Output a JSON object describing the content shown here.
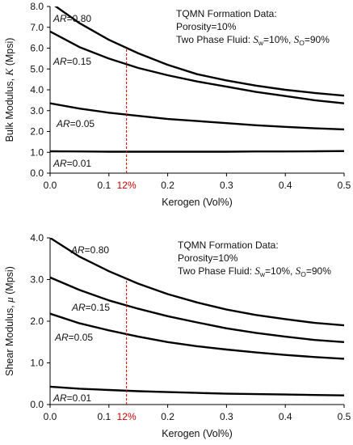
{
  "colors": {
    "line": "#000000",
    "marker": "#cc0000",
    "axis": "#000000"
  },
  "chart_data": [
    {
      "type": "line",
      "xlabel": "Kerogen (Vol%)",
      "ylabel": "Bulk Modulus, K (Mpsi)",
      "ylabel_prefix": "Bulk Modulus, ",
      "ylabel_symbol": "K",
      "ylabel_suffix": " (Mpsi)",
      "xlim": [
        0,
        0.5
      ],
      "ylim": [
        0,
        8
      ],
      "xticks": [
        0,
        0.1,
        0.2,
        0.3,
        0.4,
        0.5
      ],
      "xtick_labels": [
        "0.0",
        "0.1",
        "0.2",
        "0.3",
        "0.4",
        "0.5"
      ],
      "yticks": [
        0,
        1,
        2,
        3,
        4,
        5,
        6,
        7,
        8
      ],
      "ytick_labels": [
        "0.0",
        "1.0",
        "2.0",
        "3.0",
        "4.0",
        "5.0",
        "6.0",
        "7.0",
        "8.0"
      ],
      "marker": {
        "x": 0.13,
        "label": "12%"
      },
      "annotation": {
        "line1": "TQMN Formation Data:",
        "line2": "Porosity=10%",
        "line3_prefix": "Two Phase Fluid: ",
        "sw_symbol": "S",
        "sw_sub": "w",
        "sw_value": "=10%, ",
        "so_symbol": "S",
        "so_sub": "O",
        "so_value": "=90%"
      },
      "x": [
        0,
        0.05,
        0.1,
        0.15,
        0.2,
        0.25,
        0.3,
        0.35,
        0.4,
        0.45,
        0.5
      ],
      "series": [
        {
          "label_prefix": "AR",
          "label_value": "=0.80",
          "values": [
            8.2,
            7.2,
            6.4,
            5.75,
            5.2,
            4.75,
            4.45,
            4.2,
            4.0,
            3.85,
            3.72
          ]
        },
        {
          "label_prefix": "AR",
          "label_value": "=0.15",
          "values": [
            6.8,
            6.05,
            5.5,
            5.05,
            4.7,
            4.4,
            4.15,
            3.9,
            3.7,
            3.5,
            3.35
          ]
        },
        {
          "label_prefix": "AR",
          "label_value": "=0.05",
          "values": [
            3.35,
            3.1,
            2.9,
            2.75,
            2.6,
            2.5,
            2.4,
            2.3,
            2.22,
            2.15,
            2.1
          ]
        },
        {
          "label_prefix": "AR",
          "label_value": "=0.01",
          "values": [
            1.05,
            1.04,
            1.03,
            1.03,
            1.03,
            1.03,
            1.03,
            1.04,
            1.04,
            1.05,
            1.06
          ]
        }
      ]
    },
    {
      "type": "line",
      "xlabel": "Kerogen (Vol%)",
      "ylabel": "Shear Modulus, μ (Mpsi)",
      "ylabel_prefix": "Shear Modulus, ",
      "ylabel_symbol": "μ",
      "ylabel_suffix": " (Mpsi)",
      "xlim": [
        0,
        0.5
      ],
      "ylim": [
        0,
        4
      ],
      "xticks": [
        0,
        0.1,
        0.2,
        0.3,
        0.4,
        0.5
      ],
      "xtick_labels": [
        "0.0",
        "0.1",
        "0.2",
        "0.3",
        "0.4",
        "0.5"
      ],
      "yticks": [
        0,
        1,
        2,
        3,
        4
      ],
      "ytick_labels": [
        "0.0",
        "1.0",
        "2.0",
        "3.0",
        "4.0"
      ],
      "marker": {
        "x": 0.13,
        "label": "12%"
      },
      "annotation": {
        "line1": "TQMN Formation Data:",
        "line2": "Porosity=10%",
        "line3_prefix": "Two Phase Fluid: ",
        "sw_symbol": "S",
        "sw_sub": "w",
        "sw_value": "=10%, ",
        "so_symbol": "S",
        "so_sub": "O",
        "so_value": "=90%"
      },
      "x": [
        0,
        0.05,
        0.1,
        0.15,
        0.2,
        0.25,
        0.3,
        0.35,
        0.4,
        0.45,
        0.5
      ],
      "series": [
        {
          "label_prefix": "AR",
          "label_value": "=0.80",
          "values": [
            4.0,
            3.55,
            3.2,
            2.9,
            2.65,
            2.45,
            2.28,
            2.15,
            2.05,
            1.96,
            1.9
          ]
        },
        {
          "label_prefix": "AR",
          "label_value": "=0.15",
          "values": [
            3.05,
            2.75,
            2.5,
            2.3,
            2.12,
            1.97,
            1.83,
            1.72,
            1.63,
            1.55,
            1.5
          ]
        },
        {
          "label_prefix": "AR",
          "label_value": "=0.05",
          "values": [
            2.18,
            1.95,
            1.78,
            1.63,
            1.5,
            1.4,
            1.32,
            1.25,
            1.19,
            1.14,
            1.1
          ]
        },
        {
          "label_prefix": "AR",
          "label_value": "=0.01",
          "values": [
            0.43,
            0.38,
            0.35,
            0.32,
            0.3,
            0.28,
            0.26,
            0.25,
            0.24,
            0.23,
            0.22
          ]
        }
      ]
    }
  ]
}
